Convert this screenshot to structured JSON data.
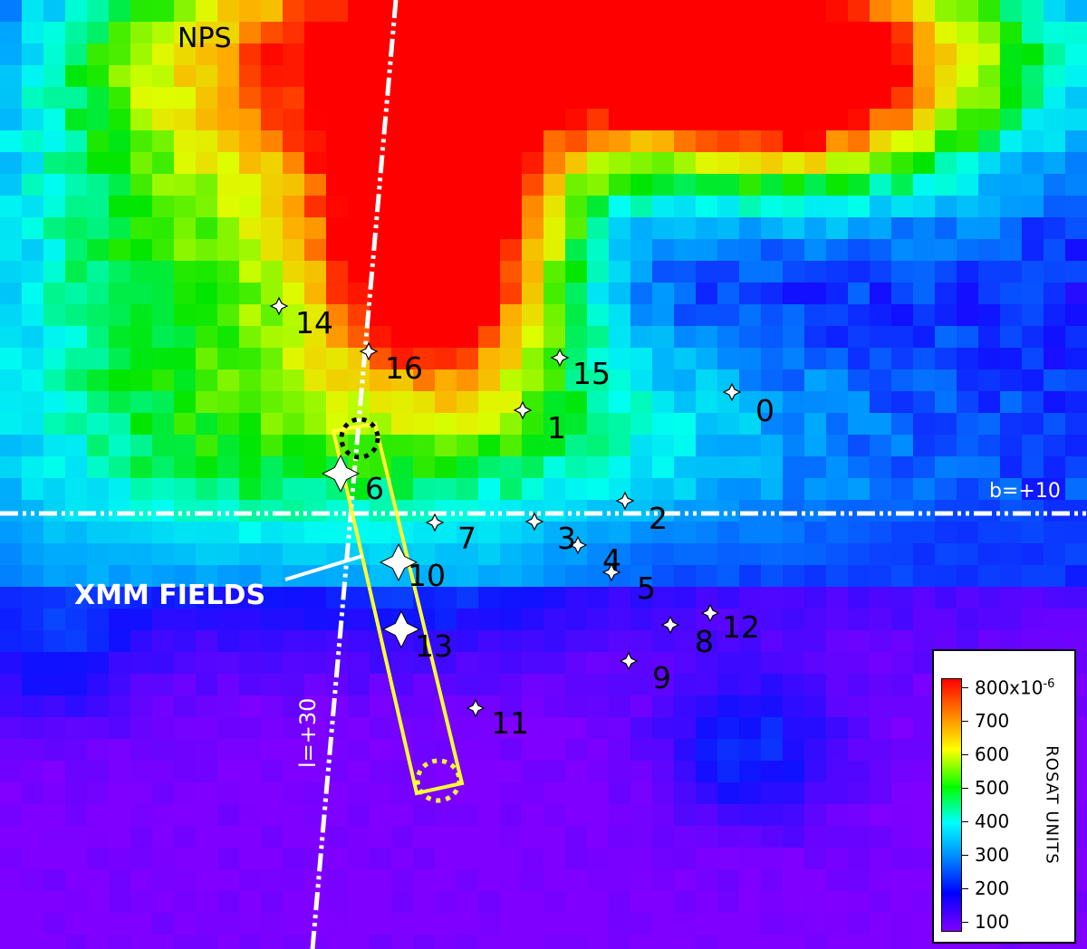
{
  "map": {
    "labels": {
      "nps": "NPS",
      "xmm_fields": "XMM FIELDS",
      "lat_line": "b=+10",
      "lon_line": "l=+30"
    },
    "field_labels": [
      "0",
      "1",
      "2",
      "3",
      "4",
      "5",
      "6",
      "7",
      "8",
      "9",
      "10",
      "11",
      "12",
      "13",
      "14",
      "15",
      "16"
    ],
    "pointer_line_color": "#ffffff",
    "field_strip_color": "#ffff33",
    "grid_line_color": "#ffffff"
  },
  "colorbar": {
    "title": "ROSAT UNITS",
    "ticks": [
      "800x10",
      "700",
      "600",
      "500",
      "400",
      "300",
      "200",
      "100"
    ],
    "exponent": "-6",
    "colors": [
      "#ff0000",
      "#ff8c00",
      "#ffff00",
      "#00ff00",
      "#00ffff",
      "#0090ff",
      "#0000ff",
      "#8000ff"
    ]
  }
}
